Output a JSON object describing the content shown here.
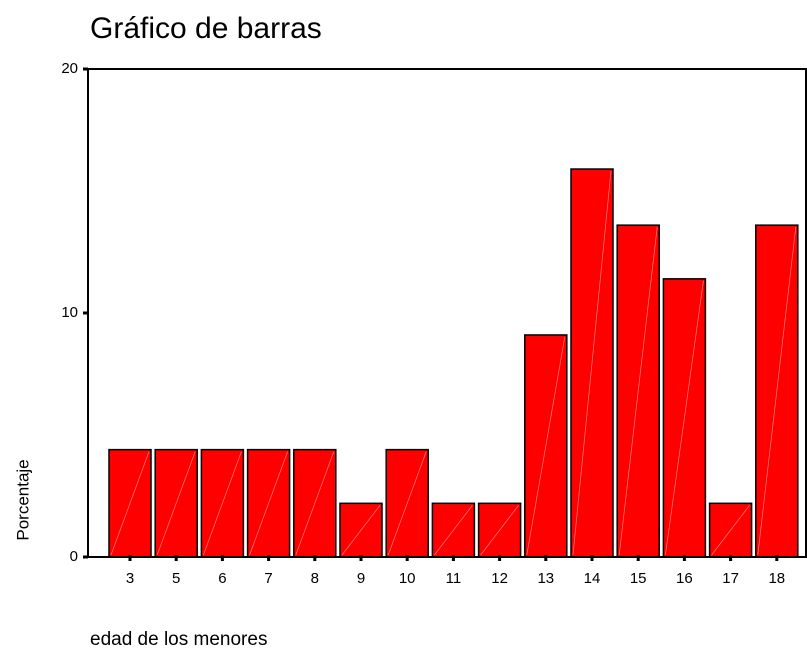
{
  "chart_data": {
    "type": "bar",
    "title": "Gráfico de barras",
    "x_label": "edad de los menores",
    "y_label": "Porcentaje",
    "categories": [
      "3",
      "5",
      "6",
      "7",
      "8",
      "9",
      "10",
      "11",
      "12",
      "13",
      "14",
      "15",
      "16",
      "17",
      "18"
    ],
    "values": [
      4.4,
      4.4,
      4.4,
      4.4,
      4.4,
      2.2,
      4.4,
      2.2,
      2.2,
      9.1,
      15.9,
      13.6,
      11.4,
      2.2,
      13.6
    ],
    "color": "#ff0000",
    "ylim": [
      0,
      20
    ],
    "yticks": [
      0,
      10,
      20
    ],
    "grid": false
  }
}
